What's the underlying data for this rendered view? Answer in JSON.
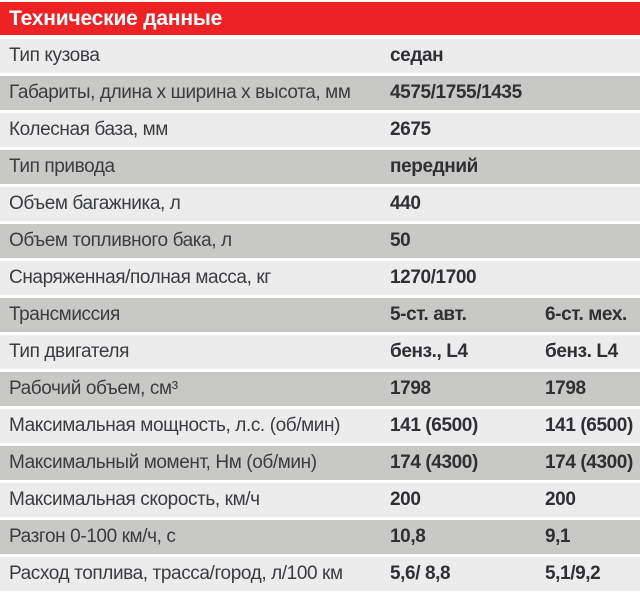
{
  "header": {
    "title": "Технические данные"
  },
  "colors": {
    "header_bg": "#ed2224",
    "header_text": "#ffffff",
    "row_light": "#ebeceb",
    "row_dark": "#c8c8c7",
    "text": "#3b3c3e"
  },
  "table": {
    "rows": [
      {
        "label": "Тип кузова",
        "value1": "седан",
        "value2": ""
      },
      {
        "label": "Габариты, длина х ширина х высота, мм",
        "value1": "4575/1755/1435",
        "value2": ""
      },
      {
        "label": "Колесная база, мм",
        "value1": "2675",
        "value2": ""
      },
      {
        "label": "Тип привода",
        "value1": "передний",
        "value2": ""
      },
      {
        "label": "Объем багажника, л",
        "value1": "440",
        "value2": ""
      },
      {
        "label": "Объем топливного бака, л",
        "value1": "50",
        "value2": ""
      },
      {
        "label": "Снаряженная/полная масса, кг",
        "value1": "1270/1700",
        "value2": ""
      },
      {
        "label": "Трансмиссия",
        "value1": "5-ст. авт.",
        "value2": "6-ст. мех."
      },
      {
        "label": "Тип двигателя",
        "value1": "бенз., L4",
        "value2": "бенз. L4"
      },
      {
        "label": "Рабочий объем, см³",
        "value1": "1798",
        "value2": "1798"
      },
      {
        "label": "Максимальная мощность, л.с. (об/мин)",
        "value1": "141 (6500)",
        "value2": "141 (6500)"
      },
      {
        "label": "Максимальный момент, Нм (об/мин)",
        "value1": "174 (4300)",
        "value2": "174 (4300)"
      },
      {
        "label": "Максимальная скорость, км/ч",
        "value1": "200",
        "value2": "200"
      },
      {
        "label": "Разгон 0-100 км/ч, с",
        "value1": "10,8",
        "value2": "9,1"
      },
      {
        "label": "Расход топлива, трасса/город, л/100 км",
        "value1": "5,6/ 8,8",
        "value2": "5,1/9,2"
      }
    ]
  }
}
